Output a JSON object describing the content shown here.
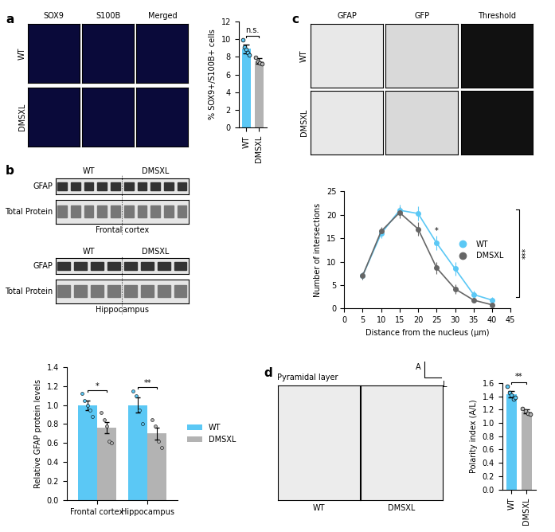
{
  "panel_labels": [
    "a",
    "b",
    "c",
    "d"
  ],
  "images": {
    "a": {
      "columns": [
        "SOX9",
        "S100B",
        "Merged"
      ],
      "rows": [
        "WT",
        "DMSXL"
      ]
    },
    "b": {
      "groups": [
        "WT",
        "DMSXL"
      ],
      "blots": [
        {
          "label": "Frontal cortex",
          "bands": [
            "GFAP",
            "Total Protein"
          ]
        },
        {
          "label": "Hippocampus",
          "bands": [
            "GFAP",
            "Total Protein"
          ]
        }
      ]
    },
    "c": {
      "columns": [
        "GFAP",
        "GFP",
        "Threshold"
      ],
      "rows": [
        "WT",
        "DMSXL"
      ]
    },
    "d": {
      "title": "Pyramidal layer",
      "columns": [
        "WT",
        "DMSXL"
      ],
      "axes": [
        "A",
        "L"
      ]
    }
  },
  "chart_data": [
    {
      "type": "bar",
      "ylabel": "% SOX9+/S100B+ cells",
      "categories": [
        "WT",
        "DMSXL"
      ],
      "values": [
        8.9,
        7.5
      ],
      "errors": [
        0.5,
        0.3
      ],
      "points": [
        [
          9.9,
          9.1,
          8.8,
          8.5,
          8.2
        ],
        [
          7.9,
          7.5,
          7.3,
          7.2
        ]
      ],
      "colors": [
        "#5bc8f5",
        "#b3b3b3"
      ],
      "ylim": [
        0,
        12
      ],
      "yticks": [
        0,
        2,
        4,
        6,
        8,
        10,
        12
      ],
      "annotations": [
        {
          "text": "n.s."
        }
      ]
    },
    {
      "type": "bar",
      "ylabel": "Relative GFAP protein levels",
      "categories": [
        "Frontal cortex",
        "Hippocampus"
      ],
      "series": [
        {
          "name": "WT",
          "color": "#5bc8f5",
          "values": [
            1.0,
            1.0
          ],
          "errors": [
            0.05,
            0.08
          ],
          "points": [
            [
              1.12,
              1.05,
              1.0,
              0.95,
              0.88
            ],
            [
              1.15,
              1.1,
              0.95,
              0.8
            ]
          ]
        },
        {
          "name": "DMSXL",
          "color": "#b3b3b3",
          "values": [
            0.76,
            0.7
          ],
          "errors": [
            0.06,
            0.06
          ],
          "points": [
            [
              0.92,
              0.85,
              0.78,
              0.62,
              0.6
            ],
            [
              0.85,
              0.78,
              0.62,
              0.55
            ]
          ]
        }
      ],
      "ylim": [
        0.0,
        1.4
      ],
      "yticks": [
        0.0,
        0.2,
        0.4,
        0.6,
        0.8,
        1.0,
        1.2,
        1.4
      ],
      "legend": "right",
      "annotations": [
        {
          "text": "*",
          "category": "Frontal cortex"
        },
        {
          "text": "**",
          "category": "Hippocampus"
        }
      ]
    },
    {
      "type": "line",
      "xlabel": "Distance from the nucleus (µm)",
      "ylabel": "Number of intersections",
      "x": [
        5,
        10,
        15,
        20,
        25,
        30,
        35,
        40
      ],
      "series": [
        {
          "name": "WT",
          "color": "#5bc8f5",
          "marker": "o",
          "values": [
            7,
            16,
            21,
            20.3,
            14,
            8.5,
            3,
            1.8
          ],
          "errors": [
            0.8,
            1.0,
            1.2,
            1.5,
            1.5,
            1.5,
            0.8,
            0.6
          ]
        },
        {
          "name": "DMSXL",
          "color": "#666666",
          "marker": "o",
          "values": [
            7,
            16.5,
            20.5,
            17,
            8.7,
            4.2,
            1.8,
            0.8
          ],
          "errors": [
            0.8,
            1.0,
            1.2,
            1.5,
            1.3,
            1.0,
            0.6,
            0.4
          ]
        }
      ],
      "xlim": [
        0,
        45
      ],
      "xticks": [
        0,
        5,
        10,
        15,
        20,
        25,
        30,
        35,
        40,
        45
      ],
      "ylim": [
        0,
        25
      ],
      "yticks": [
        0,
        5,
        10,
        15,
        20,
        25
      ],
      "legend": "center right",
      "annotations": [
        {
          "text": "*",
          "x": 25
        },
        {
          "text": "***"
        }
      ]
    },
    {
      "type": "bar",
      "ylabel": "Polarity index (A/L)",
      "categories": [
        "WT",
        "DMSXL"
      ],
      "values": [
        1.43,
        1.17
      ],
      "errors": [
        0.05,
        0.03
      ],
      "points": [
        [
          1.55,
          1.45,
          1.42,
          1.36,
          1.38
        ],
        [
          1.22,
          1.18,
          1.15,
          1.13
        ]
      ],
      "colors": [
        "#5bc8f5",
        "#b3b3b3"
      ],
      "ylim": [
        0.0,
        1.6
      ],
      "yticks": [
        0.0,
        0.2,
        0.4,
        0.6,
        0.8,
        1.0,
        1.2,
        1.4,
        1.6
      ],
      "annotations": [
        {
          "text": "**"
        }
      ]
    }
  ]
}
